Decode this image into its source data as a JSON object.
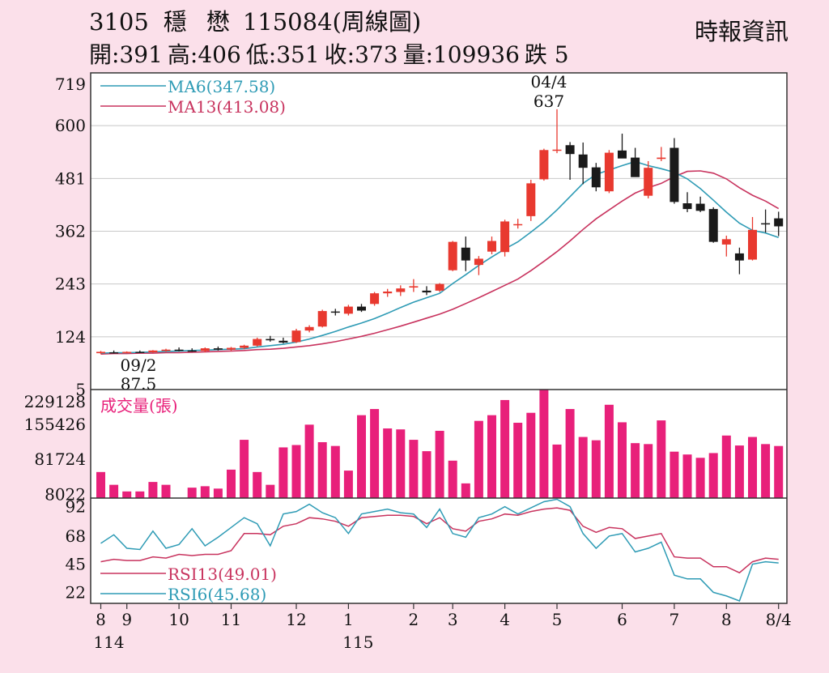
{
  "header": {
    "code": "3105",
    "name": "穩懋",
    "suffix": "115084(周線圖)",
    "source": "時報資訊",
    "quote": {
      "open": "開:391",
      "high": "高:406",
      "low": "低:351",
      "close": "收:373",
      "volume": "量:109936",
      "change": "跌 5"
    }
  },
  "colors": {
    "up": "#e8392f",
    "down": "#1a1a1a",
    "ma6": "#2e9bb5",
    "ma13": "#c8335e",
    "volume": "#e8207a",
    "rsi13": "#c8335e",
    "rsi6": "#2e9bb5"
  },
  "chart_data": [
    {
      "type": "candlestick",
      "title": "",
      "y_ticks": [
        "719",
        "600",
        "481",
        "362",
        "243",
        "124",
        "5"
      ],
      "ylim": [
        5,
        719
      ],
      "grid": true,
      "legend": [
        {
          "label": "MA6(347.58)",
          "color": "#2e9bb5"
        },
        {
          "label": "MA13(413.08)",
          "color": "#c8335e"
        }
      ],
      "annotations": [
        {
          "date": "04/4",
          "value": "637"
        },
        {
          "date": "09/2",
          "value": "87.5"
        }
      ],
      "candles": [
        [
          87,
          92,
          85,
          90
        ],
        [
          89,
          93,
          86,
          88
        ],
        [
          88,
          91,
          87,
          90
        ],
        [
          90,
          93,
          88,
          89
        ],
        [
          89,
          94,
          88,
          93
        ],
        [
          92,
          97,
          90,
          95
        ],
        [
          95,
          100,
          91,
          93
        ],
        [
          93,
          98,
          90,
          92
        ],
        [
          92,
          100,
          89,
          98
        ],
        [
          98,
          102,
          93,
          95
        ],
        [
          95,
          101,
          92,
          99
        ],
        [
          99,
          106,
          96,
          104
        ],
        [
          104,
          122,
          102,
          119
        ],
        [
          119,
          126,
          113,
          116
        ],
        [
          115,
          122,
          109,
          111
        ],
        [
          112,
          142,
          110,
          138
        ],
        [
          138,
          150,
          134,
          146
        ],
        [
          147,
          185,
          145,
          182
        ],
        [
          181,
          187,
          172,
          180
        ],
        [
          176,
          196,
          172,
          192
        ],
        [
          192,
          198,
          180,
          183
        ],
        [
          198,
          225,
          194,
          222
        ],
        [
          222,
          232,
          214,
          226
        ],
        [
          225,
          240,
          216,
          233
        ],
        [
          235,
          254,
          225,
          238
        ],
        [
          228,
          238,
          218,
          224
        ],
        [
          228,
          245,
          225,
          243
        ],
        [
          274,
          340,
          272,
          338
        ],
        [
          325,
          350,
          272,
          296
        ],
        [
          286,
          306,
          263,
          300
        ],
        [
          316,
          350,
          310,
          340
        ],
        [
          315,
          388,
          305,
          384
        ],
        [
          378,
          390,
          368,
          378
        ],
        [
          396,
          478,
          385,
          470
        ],
        [
          479,
          548,
          476,
          545
        ],
        [
          545,
          637,
          538,
          546
        ],
        [
          556,
          563,
          478,
          536
        ],
        [
          535,
          562,
          468,
          505
        ],
        [
          506,
          516,
          452,
          461
        ],
        [
          452,
          545,
          448,
          539
        ],
        [
          544,
          582,
          533,
          526
        ],
        [
          528,
          550,
          486,
          484
        ],
        [
          442,
          520,
          436,
          505
        ],
        [
          525,
          552,
          520,
          528
        ],
        [
          550,
          572,
          424,
          428
        ],
        [
          425,
          450,
          405,
          412
        ],
        [
          424,
          440,
          405,
          408
        ],
        [
          412,
          416,
          336,
          338
        ],
        [
          332,
          352,
          305,
          344
        ],
        [
          312,
          325,
          265,
          296
        ],
        [
          298,
          394,
          296,
          365
        ],
        [
          380,
          411,
          359,
          378
        ],
        [
          391,
          406,
          351,
          373
        ]
      ],
      "ma6": [
        87,
        88,
        88,
        89,
        90,
        91,
        92,
        93,
        94,
        95,
        96,
        97,
        101,
        104,
        107,
        112,
        119,
        127,
        136,
        146,
        155,
        165,
        177,
        190,
        202,
        212,
        222,
        244,
        264,
        285,
        304,
        322,
        338,
        360,
        383,
        410,
        440,
        470,
        490,
        500,
        510,
        519,
        510,
        503,
        495,
        480,
        458,
        432,
        405,
        380,
        364,
        358,
        348
      ],
      "ma13": [
        85,
        86,
        86,
        87,
        87,
        88,
        88,
        89,
        90,
        91,
        92,
        93,
        95,
        96,
        98,
        101,
        104,
        108,
        113,
        119,
        125,
        132,
        140,
        148,
        157,
        166,
        175,
        186,
        199,
        212,
        226,
        240,
        254,
        273,
        294,
        316,
        340,
        366,
        390,
        410,
        430,
        448,
        460,
        470,
        485,
        497,
        498,
        493,
        480,
        460,
        443,
        430,
        413
      ]
    },
    {
      "type": "bar",
      "title": "成交量(張)",
      "y_ticks": [
        "229128",
        "155426",
        "81724",
        "8022"
      ],
      "ylim": [
        0,
        229128
      ],
      "values": [
        55000,
        28000,
        14000,
        14000,
        34000,
        28000,
        0,
        22000,
        25000,
        20000,
        60000,
        123000,
        55000,
        28000,
        107000,
        112000,
        155000,
        118000,
        110000,
        58000,
        175000,
        188000,
        147000,
        145000,
        123000,
        99000,
        142000,
        79000,
        31000,
        163000,
        175000,
        207000,
        159000,
        180000,
        229128,
        113000,
        188000,
        129000,
        122000,
        197000,
        160000,
        116000,
        114000,
        164000,
        98000,
        92000,
        85000,
        95000,
        132000,
        111000,
        129000,
        114000,
        109936
      ]
    },
    {
      "type": "line",
      "y_ticks": [
        "92",
        "68",
        "45",
        "22"
      ],
      "ylim": [
        13,
        99
      ],
      "legend": [
        {
          "label": "RSI13(49.01)",
          "color": "#c8335e"
        },
        {
          "label": "RSI6(45.68)",
          "color": "#2e9bb5"
        }
      ],
      "series": [
        {
          "name": "RSI13(49.01)",
          "values": [
            47,
            49,
            48,
            48,
            51,
            50,
            53,
            52,
            53,
            53,
            56,
            70,
            70,
            69,
            76,
            78,
            83,
            82,
            80,
            76,
            83,
            84,
            85,
            85,
            84,
            78,
            83,
            74,
            72,
            80,
            82,
            86,
            85,
            88,
            90,
            91,
            89,
            76,
            71,
            75,
            74,
            66,
            68,
            70,
            51,
            50,
            50,
            43,
            43,
            38,
            47,
            50,
            49
          ]
        },
        {
          "name": "RSI6(45.68)",
          "values": [
            62,
            69,
            58,
            57,
            72,
            58,
            61,
            74,
            60,
            67,
            75,
            83,
            78,
            60,
            86,
            88,
            94,
            87,
            83,
            70,
            86,
            88,
            90,
            87,
            86,
            75,
            90,
            70,
            67,
            83,
            86,
            92,
            86,
            91,
            96,
            98,
            92,
            70,
            58,
            68,
            70,
            55,
            58,
            63,
            36,
            33,
            33,
            22,
            19,
            15,
            45,
            47,
            46
          ]
        }
      ]
    }
  ],
  "x_axis": {
    "ticks": [
      {
        "i": 0,
        "label": "8"
      },
      {
        "i": 2,
        "label": "9"
      },
      {
        "i": 6,
        "label": "10"
      },
      {
        "i": 10,
        "label": "11"
      },
      {
        "i": 15,
        "label": "12"
      },
      {
        "i": 19,
        "label": "1"
      },
      {
        "i": 24,
        "label": "2"
      },
      {
        "i": 27,
        "label": "3"
      },
      {
        "i": 31,
        "label": "4"
      },
      {
        "i": 35,
        "label": "5"
      },
      {
        "i": 40,
        "label": "6"
      },
      {
        "i": 44,
        "label": "7"
      },
      {
        "i": 48,
        "label": "8"
      },
      {
        "i": 52,
        "label": "8/4"
      }
    ],
    "year_labels": [
      {
        "i": 0,
        "label": "114"
      },
      {
        "i": 19,
        "label": "115"
      }
    ]
  }
}
